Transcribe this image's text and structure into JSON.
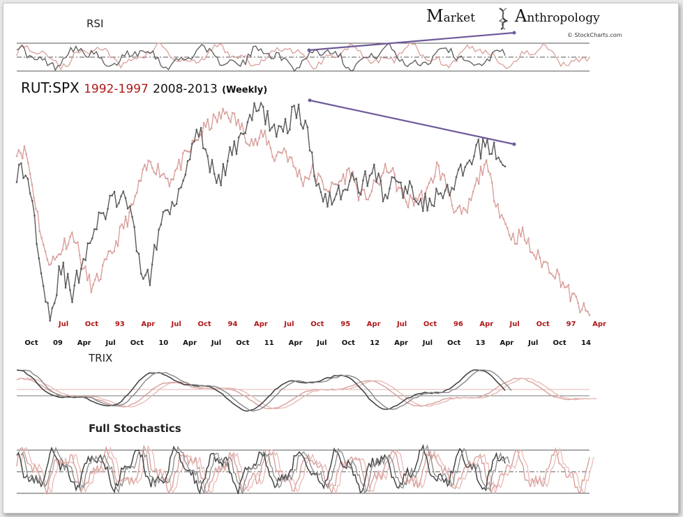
{
  "brand": {
    "word1_initial": "M",
    "word1_rest": "arket",
    "word2_initial": "A",
    "word2_rest": "nthropology",
    "credit": "© StockCharts.com"
  },
  "chart_data": {
    "type": "line",
    "title": {
      "symbol": "RUT:SPX",
      "period1": "1992-1997",
      "period2": "2008-2013",
      "suffix": "(Weekly)"
    },
    "colors": {
      "period1": "#d9a09c",
      "period2": "#5a5a5a",
      "trendline": "#6f5a9a",
      "red_text": "#b01818"
    },
    "x_axis_top_1992_1997": [
      "Jul",
      "Oct",
      "93",
      "Apr",
      "Jul",
      "Oct",
      "94",
      "Apr",
      "Jul",
      "Oct",
      "95",
      "Apr",
      "Jul",
      "Oct",
      "96",
      "Apr",
      "Jul",
      "Oct",
      "97",
      "Apr"
    ],
    "x_axis_bottom_2008_2013": [
      "Oct",
      "09",
      "Apr",
      "Jul",
      "Oct",
      "10",
      "Apr",
      "Jul",
      "Oct",
      "11",
      "Apr",
      "Jul",
      "Oct",
      "12",
      "Apr",
      "Jul",
      "Oct",
      "13",
      "Apr",
      "Jul",
      "Oct",
      "14"
    ],
    "panels": {
      "rsi": {
        "label": "RSI"
      },
      "trix": {
        "label": "TRIX"
      },
      "stoch": {
        "label": "Full Stochastics"
      }
    },
    "series": [
      {
        "period": "1992-1997",
        "values": [
          0.8,
          0.78,
          0.55,
          0.32,
          0.3,
          0.38,
          0.42,
          0.26,
          0.18,
          0.26,
          0.34,
          0.44,
          0.52,
          0.66,
          0.74,
          0.7,
          0.66,
          0.72,
          0.78,
          0.85,
          0.9,
          0.93,
          0.96,
          0.92,
          0.86,
          0.82,
          0.86,
          0.76,
          0.8,
          0.72,
          0.66,
          0.7,
          0.64,
          0.62,
          0.66,
          0.7,
          0.58,
          0.6,
          0.66,
          0.72,
          0.62,
          0.56,
          0.58,
          0.6,
          0.72,
          0.64,
          0.52,
          0.5,
          0.62,
          0.74,
          0.6,
          0.48,
          0.4,
          0.42,
          0.34,
          0.3,
          0.27,
          0.22,
          0.15,
          0.1,
          0.05
        ]
      },
      {
        "period": "2008-2013",
        "values": [
          0.7,
          0.68,
          0.35,
          0.05,
          0.28,
          0.14,
          0.32,
          0.44,
          0.52,
          0.58,
          0.56,
          0.3,
          0.22,
          0.48,
          0.56,
          0.66,
          0.88,
          0.82,
          0.62,
          0.74,
          0.84,
          0.94,
          0.98,
          0.9,
          0.86,
          0.98,
          0.9,
          0.66,
          0.58,
          0.6,
          0.66,
          0.62,
          0.72,
          0.6,
          0.64,
          0.62,
          0.6,
          0.55,
          0.58,
          0.6,
          0.68,
          0.74,
          0.82,
          0.8,
          0.7
        ]
      }
    ],
    "trendlines": [
      {
        "panel": "rsi",
        "from": "Apr 2011",
        "to": "Apr 2013",
        "direction": "rising"
      },
      {
        "panel": "price",
        "from": "Apr 2011",
        "to": "Apr 2013",
        "direction": "falling"
      }
    ],
    "grid": false,
    "legend": "none"
  }
}
